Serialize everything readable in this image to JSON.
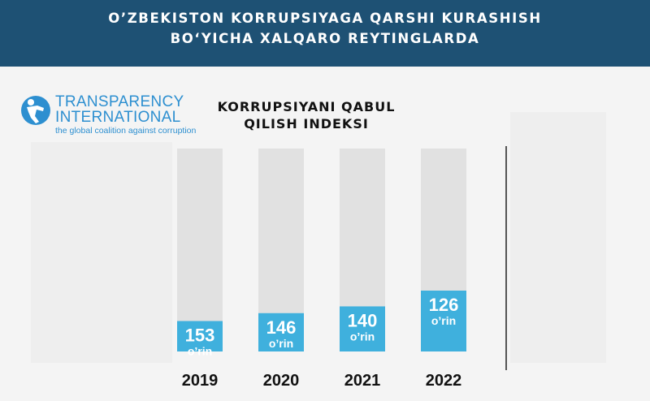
{
  "header": {
    "line1": "O’ZBEKISTON KORRUPSIYAGA QARSHI KURASHISH",
    "line2": "BO‘YICHA XALQARO REYTINGLARDA"
  },
  "logo": {
    "line1": "TRANSPARENCY",
    "line2": "INTERNATIONAL",
    "tagline": "the global coalition against corruption",
    "icon": "globe-person-icon"
  },
  "colors": {
    "header_bg": "#1e5174",
    "bar": "#3fb0dd",
    "bar_track": "#e1e1e1",
    "logo": "#2d8fd0"
  },
  "chart_data": {
    "type": "bar",
    "title": "KORRUPSIYANI QABUL QILISH INDEKSI",
    "title_lines": [
      "KORRUPSIYANI QABUL",
      "QILISH INDEKSI"
    ],
    "categories": [
      "2019",
      "2020",
      "2021",
      "2022"
    ],
    "values": [
      153,
      146,
      140,
      126
    ],
    "value_suffix": "o‘rin",
    "value_label_texts": [
      "153",
      "146",
      "140",
      "126"
    ],
    "value_suffix_text": "o’rin",
    "ylim": [
      180,
      0
    ],
    "inverted_rank": true,
    "grid": false
  }
}
